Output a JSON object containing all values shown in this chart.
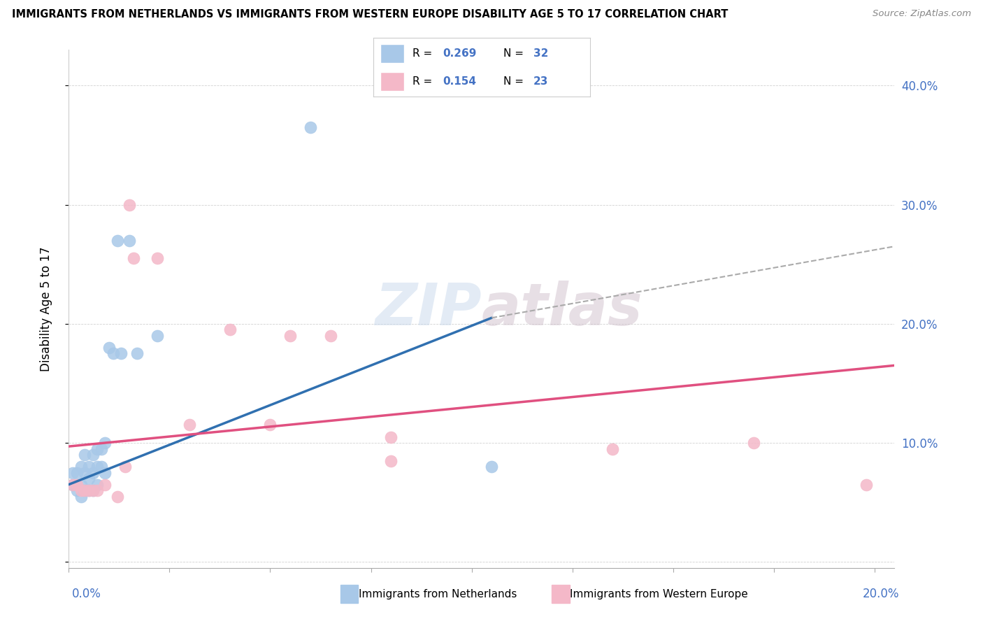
{
  "title": "IMMIGRANTS FROM NETHERLANDS VS IMMIGRANTS FROM WESTERN EUROPE DISABILITY AGE 5 TO 17 CORRELATION CHART",
  "source": "Source: ZipAtlas.com",
  "ylabel": "Disability Age 5 to 17",
  "watermark": "ZIPatlas",
  "blue_color": "#a8c8e8",
  "pink_color": "#f4b8c8",
  "blue_line_color": "#3070b0",
  "pink_line_color": "#e05080",
  "dashed_line_color": "#aaaaaa",
  "legend_color": "#4472c4",
  "xlim": [
    0.0,
    0.205
  ],
  "ylim": [
    -0.005,
    0.43
  ],
  "blue_scatter_x": [
    0.001,
    0.001,
    0.002,
    0.002,
    0.003,
    0.003,
    0.003,
    0.004,
    0.004,
    0.004,
    0.005,
    0.005,
    0.005,
    0.006,
    0.006,
    0.006,
    0.007,
    0.007,
    0.007,
    0.008,
    0.008,
    0.009,
    0.009,
    0.01,
    0.011,
    0.012,
    0.013,
    0.015,
    0.017,
    0.022,
    0.06,
    0.105
  ],
  "blue_scatter_y": [
    0.065,
    0.075,
    0.06,
    0.075,
    0.055,
    0.065,
    0.08,
    0.06,
    0.075,
    0.09,
    0.06,
    0.07,
    0.08,
    0.06,
    0.075,
    0.09,
    0.065,
    0.08,
    0.095,
    0.08,
    0.095,
    0.075,
    0.1,
    0.18,
    0.175,
    0.27,
    0.175,
    0.27,
    0.175,
    0.19,
    0.365,
    0.08
  ],
  "pink_scatter_x": [
    0.001,
    0.002,
    0.003,
    0.004,
    0.005,
    0.006,
    0.007,
    0.009,
    0.012,
    0.014,
    0.015,
    0.016,
    0.022,
    0.03,
    0.04,
    0.05,
    0.055,
    0.065,
    0.08,
    0.08,
    0.135,
    0.17,
    0.198
  ],
  "pink_scatter_y": [
    0.065,
    0.065,
    0.06,
    0.06,
    0.06,
    0.06,
    0.06,
    0.065,
    0.055,
    0.08,
    0.3,
    0.255,
    0.255,
    0.115,
    0.195,
    0.115,
    0.19,
    0.19,
    0.105,
    0.085,
    0.095,
    0.1,
    0.065
  ],
  "blue_trend_x": [
    0.0,
    0.105
  ],
  "blue_trend_y": [
    0.065,
    0.205
  ],
  "pink_trend_x": [
    0.0,
    0.205
  ],
  "pink_trend_y": [
    0.097,
    0.165
  ],
  "dashed_trend_x": [
    0.105,
    0.205
  ],
  "dashed_trend_y": [
    0.205,
    0.265
  ]
}
